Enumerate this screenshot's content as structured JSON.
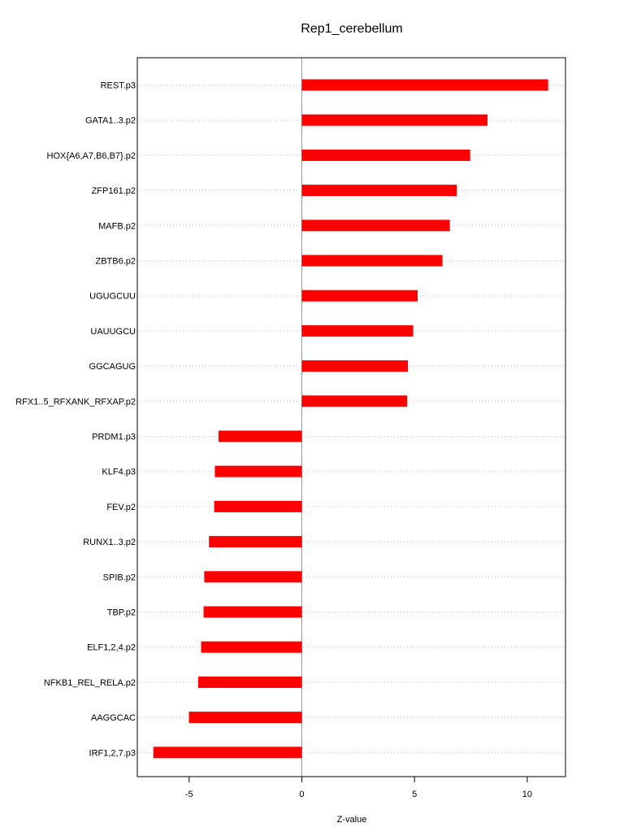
{
  "chart_data": {
    "type": "bar",
    "orientation": "horizontal",
    "title": "Rep1_cerebellum",
    "xlabel": "Z-value",
    "ylabel": "",
    "xlim": [
      -7.3,
      11.7
    ],
    "xticks": [
      -5,
      0,
      5,
      10
    ],
    "grid": "dotted horizontal",
    "bar_color": "#ff0000",
    "zero_line_color": "#00ff00",
    "categories": [
      "REST.p3",
      "GATA1..3.p2",
      "HOX{A6,A7,B6,B7}.p2",
      "ZFP161.p2",
      "MAFB.p2",
      "ZBTB6.p2",
      "UGUGCUU",
      "UAUUGCU",
      "GGCAGUG",
      "RFX1..5_RFXANK_RFXAP.p2",
      "PRDM1.p3",
      "KLF4.p3",
      "FEV.p2",
      "RUNX1..3.p2",
      "SPIB.p2",
      "TBP.p2",
      "ELF1,2,4.p2",
      "NFKB1_REL_RELA.p2",
      "AAGGCAC",
      "IRF1,2,7.p3"
    ],
    "values": [
      10.93,
      8.24,
      7.47,
      6.88,
      6.57,
      6.24,
      5.14,
      4.94,
      4.71,
      4.67,
      -3.7,
      -3.86,
      -3.89,
      -4.12,
      -4.33,
      -4.36,
      -4.47,
      -4.6,
      -5.01,
      -6.59
    ]
  }
}
